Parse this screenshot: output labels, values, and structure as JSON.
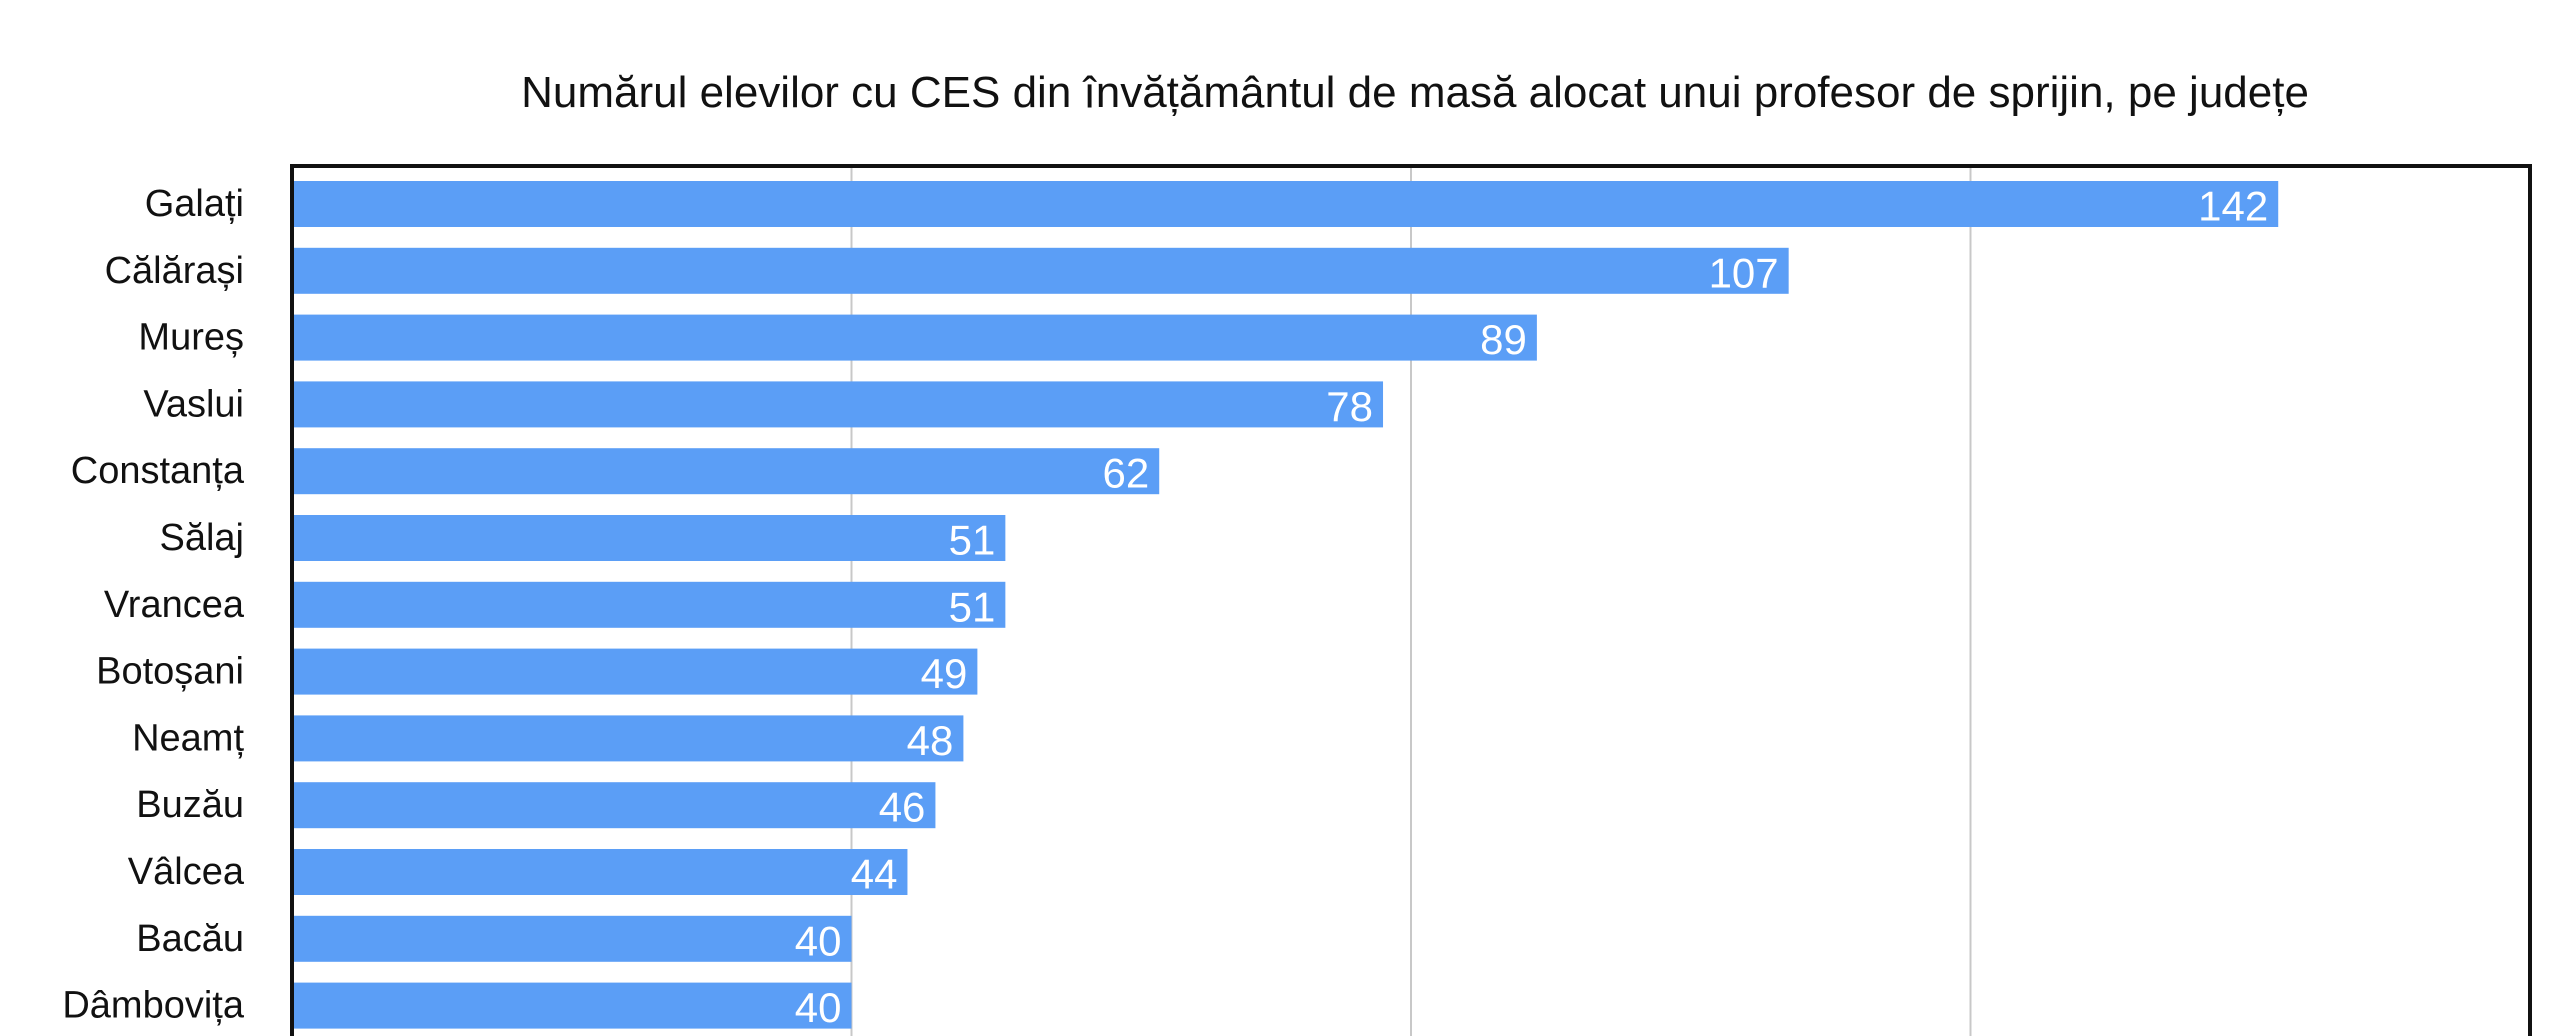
{
  "chart_data": {
    "type": "bar",
    "orientation": "horizontal",
    "title": "Numărul elevilor cu CES din învățământul de masă alocat unui profesor de sprijin, pe județe",
    "categories": [
      "Galați",
      "Călărași",
      "Mureș",
      "Vaslui",
      "Constanța",
      "Sălaj",
      "Vrancea",
      "Botoșani",
      "Neamț",
      "Buzău",
      "Vâlcea",
      "Bacău",
      "Dâmbovița"
    ],
    "values": [
      142,
      107,
      89,
      78,
      62,
      51,
      51,
      49,
      48,
      46,
      44,
      40,
      40
    ],
    "xlim": [
      0,
      160
    ],
    "gridlines_x": [
      40,
      80,
      120
    ],
    "grid": true,
    "bar_color": "#5b9ef6",
    "value_label_color": "#ffffff",
    "data_labels": true
  }
}
